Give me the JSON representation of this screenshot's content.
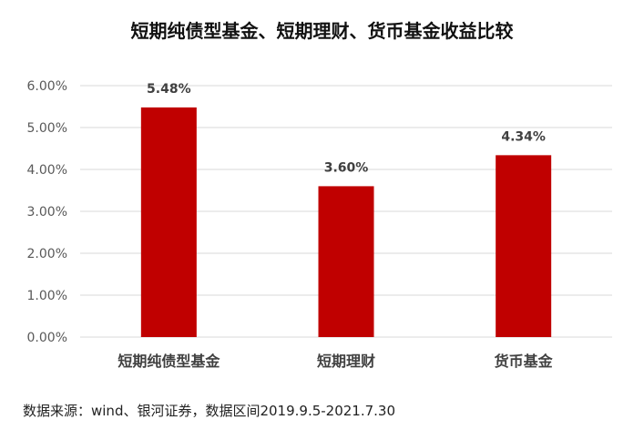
{
  "title": "短期纯债型基金、短期理财、货币基金收益比较",
  "source_note": "数据来源：wind、银河证券，数据区间2019.9.5-2021.7.30",
  "colors": {
    "bar": "#c00000",
    "grid": "#d9d9d9"
  },
  "chart_data": {
    "type": "bar",
    "title": "短期纯债型基金、短期理财、货币基金收益比较",
    "categories": [
      "短期纯债型基金",
      "短期理财",
      "货币基金"
    ],
    "values": [
      5.48,
      3.6,
      4.34
    ],
    "value_labels": [
      "5.48%",
      "3.60%",
      "4.34%"
    ],
    "ylim": [
      0,
      6
    ],
    "yticks": [
      "0.00%",
      "1.00%",
      "2.00%",
      "3.00%",
      "4.00%",
      "5.00%",
      "6.00%"
    ],
    "grid": true,
    "legend": "none"
  }
}
